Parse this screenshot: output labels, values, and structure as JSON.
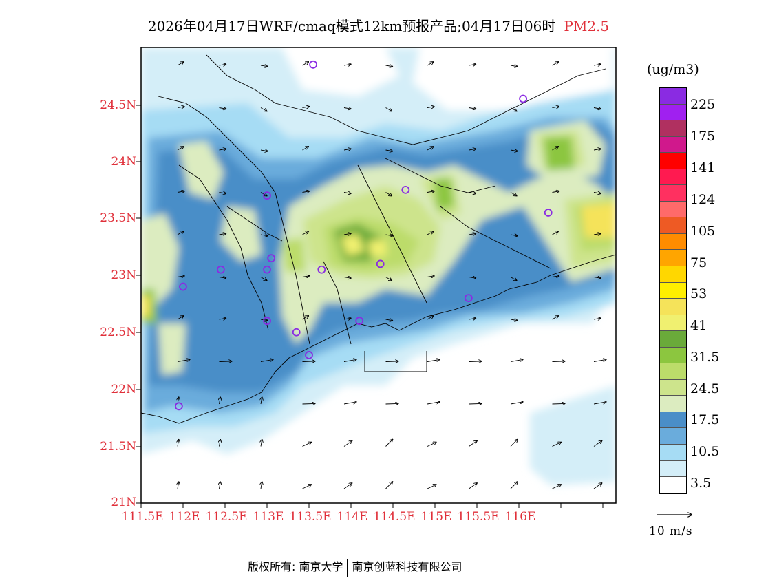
{
  "title": {
    "text": "2026年04月17日WRF/cmaq模式12km预报产品;04月17日06时",
    "pollutant": "PM2.5",
    "pollutant_color": "#e0303a"
  },
  "axes": {
    "lat_labels": [
      "24.5N",
      "24N",
      "23.5N",
      "23N",
      "22.5N",
      "22N",
      "21.5N",
      "21N"
    ],
    "lon_labels": [
      "111.5E",
      "112E",
      "112.5E",
      "113E",
      "113.5E",
      "114E",
      "114.5E",
      "115E",
      "115.5E",
      "116E"
    ],
    "label_color": "#e0303a"
  },
  "colorbar": {
    "unit": "(ug/m3)",
    "colors": [
      "#8a2be2",
      "#a020f0",
      "#b03060",
      "#d0188c",
      "#ff0000",
      "#ff1a50",
      "#ff3060",
      "#ff6a6a",
      "#ee5a24",
      "#ff8c00",
      "#ffa500",
      "#ffd700",
      "#ffee00",
      "#f5e35a",
      "#f0f070",
      "#6aaa3a",
      "#8cc63f",
      "#bcdc6a",
      "#cde48c",
      "#dcecc0",
      "#4a8ec8",
      "#6aacdc",
      "#a6dcf4",
      "#d4eef8",
      "#ffffff"
    ],
    "ticks": [
      "225",
      "175",
      "141",
      "124",
      "105",
      "75",
      "53",
      "41",
      "31.5",
      "24.5",
      "17.5",
      "10.5",
      "3.5"
    ]
  },
  "wind_reference": {
    "label": "10 m/s"
  },
  "stations": [
    "113.55E 24.85N",
    "116.05E 24.55N",
    "113.0E 23.7N",
    "114.65E 23.75N",
    "116.35E 23.55N",
    "112.0E 22.9N",
    "112.45E 23.05N",
    "113.05E 23.15N",
    "113.0E 23.05N",
    "113.65E 23.05N",
    "114.35E 23.1N",
    "115.4E 22.8N",
    "113.0E 22.6N",
    "113.35E 22.5N",
    "114.1E 22.6N",
    "113.5E 22.3N",
    "111.95E 21.85N"
  ],
  "footer": {
    "left": "版权所有: 南京大学",
    "right": "南京创蓝科技有限公司"
  }
}
